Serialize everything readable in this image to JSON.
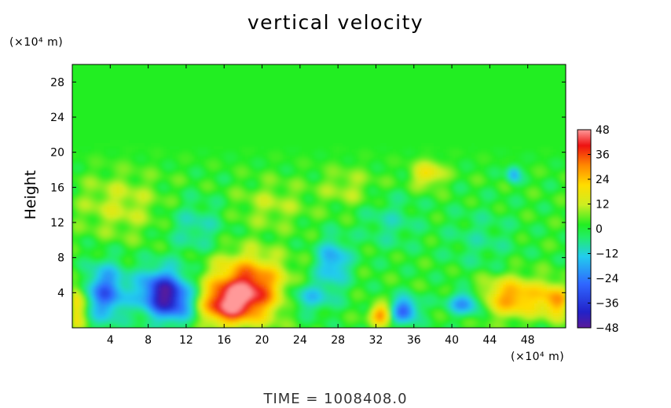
{
  "chart_data": {
    "type": "heatmap",
    "title": "vertical velocity",
    "xlabel": "",
    "ylabel": "Height",
    "x_unit": "(×10⁴ m)",
    "y_unit": "(×10⁴ m)",
    "footer": "TIME  =  1008408.0",
    "xlim": [
      0,
      52
    ],
    "ylim": [
      0,
      30
    ],
    "x_ticks": [
      4,
      8,
      12,
      16,
      20,
      24,
      28,
      32,
      36,
      40,
      44,
      48
    ],
    "x_tick_labels": [
      "4",
      "8",
      "12",
      "16",
      "20",
      "24",
      "28",
      "32",
      "36",
      "40",
      "44",
      "48"
    ],
    "y_ticks": [
      4,
      8,
      12,
      16,
      20,
      24,
      28
    ],
    "y_tick_labels": [
      "4",
      "8",
      "12",
      "16",
      "20",
      "24",
      "28"
    ],
    "colorbar": {
      "min": -48,
      "max": 48,
      "ticks": [
        48,
        36,
        24,
        12,
        0,
        -12,
        -24,
        -36,
        -48
      ],
      "tick_labels": [
        "48",
        "36",
        "24",
        "12",
        "0",
        "−12",
        "−24",
        "−36",
        "−48"
      ]
    },
    "features": [
      {
        "x": 3.5,
        "y": 4.0,
        "value": -30,
        "sx": 1.5,
        "sy": 2.2
      },
      {
        "x": 9.5,
        "y": 4.2,
        "value": -38,
        "sx": 1.8,
        "sy": 1.8
      },
      {
        "x": 11.0,
        "y": 2.5,
        "value": -20,
        "sx": 1.8,
        "sy": 1.5
      },
      {
        "x": 18.5,
        "y": 4.5,
        "value": 42,
        "sx": 2.6,
        "sy": 2.4
      },
      {
        "x": 16.0,
        "y": 2.5,
        "value": 30,
        "sx": 2.0,
        "sy": 1.5
      },
      {
        "x": 27.5,
        "y": 7.5,
        "value": -22,
        "sx": 1.2,
        "sy": 1.8
      },
      {
        "x": 25.0,
        "y": 3.5,
        "value": -16,
        "sx": 1.8,
        "sy": 1.2
      },
      {
        "x": 32.5,
        "y": 1.5,
        "value": 30,
        "sx": 0.8,
        "sy": 0.8
      },
      {
        "x": 35.0,
        "y": 2.0,
        "value": -32,
        "sx": 1.0,
        "sy": 1.0
      },
      {
        "x": 41.5,
        "y": 2.8,
        "value": -26,
        "sx": 1.3,
        "sy": 0.9
      },
      {
        "x": 46.5,
        "y": 3.5,
        "value": 28,
        "sx": 2.5,
        "sy": 1.5
      },
      {
        "x": 51.0,
        "y": 3.0,
        "value": 24,
        "sx": 1.0,
        "sy": 1.3
      },
      {
        "x": 0.3,
        "y": 2.5,
        "value": 22,
        "sx": 0.8,
        "sy": 2.0
      },
      {
        "x": 46.5,
        "y": 17.5,
        "value": -20,
        "sx": 0.5,
        "sy": 0.7
      },
      {
        "x": 37.5,
        "y": 17.5,
        "value": 18,
        "sx": 1.2,
        "sy": 1.0
      },
      {
        "x": 5.0,
        "y": 14.0,
        "value": 10,
        "sx": 3.0,
        "sy": 2.5
      },
      {
        "x": 13.0,
        "y": 11.5,
        "value": -10,
        "sx": 2.0,
        "sy": 2.0
      },
      {
        "x": 21.0,
        "y": 14.0,
        "value": 8,
        "sx": 2.5,
        "sy": 1.8
      },
      {
        "x": 33.5,
        "y": 12.0,
        "value": -8,
        "sx": 2.0,
        "sy": 2.0
      },
      {
        "x": 43.0,
        "y": 10.0,
        "value": -6,
        "sx": 2.5,
        "sy": 2.5
      },
      {
        "x": 29.0,
        "y": 16.0,
        "value": 8,
        "sx": 2.0,
        "sy": 1.5
      }
    ]
  }
}
